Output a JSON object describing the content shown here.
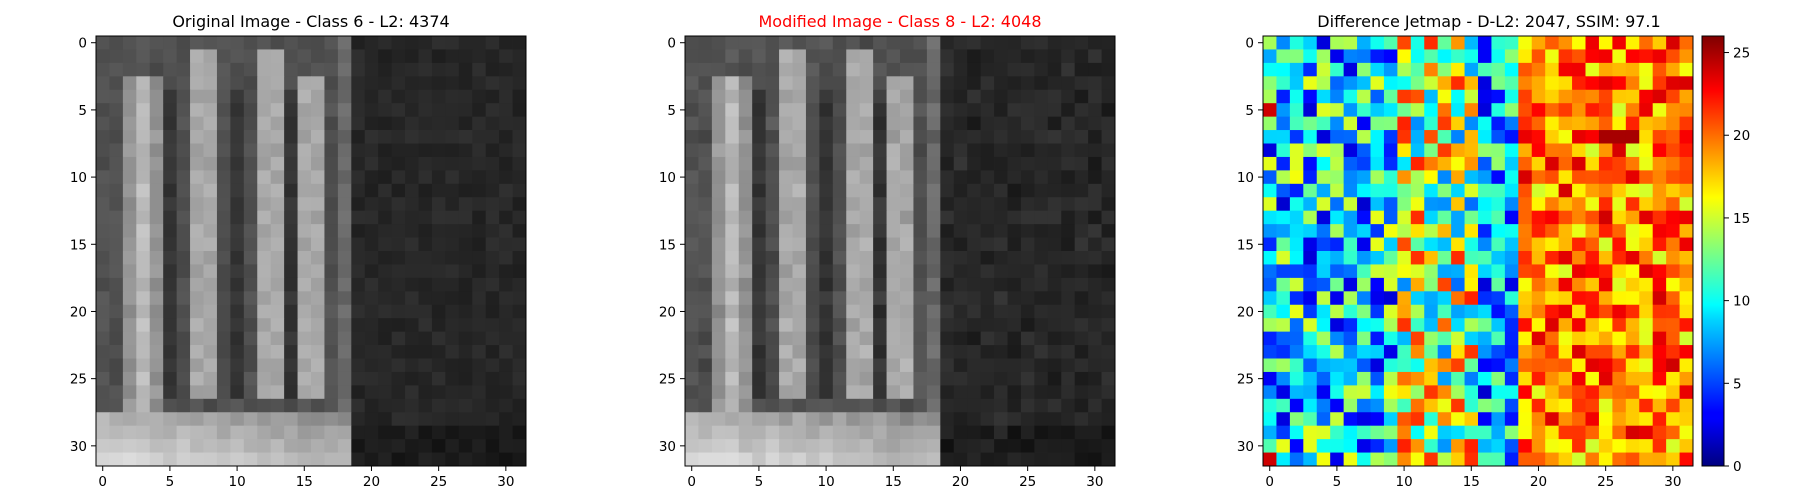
{
  "figure": {
    "panels": [
      {
        "title": "Original Image - Class 6 - L2: 4374",
        "title_color": "#000000"
      },
      {
        "title": "Modified Image - Class 8 - L2: 4048",
        "title_color": "#ff0000"
      },
      {
        "title": "Difference Jetmap - D-L2: 2047, SSIM: 97.1",
        "title_color": "#000000"
      }
    ],
    "x_ticks": [
      "0",
      "5",
      "10",
      "15",
      "20",
      "25",
      "30"
    ],
    "y_ticks": [
      "0",
      "5",
      "10",
      "15",
      "20",
      "25",
      "30"
    ],
    "colorbar_ticks": [
      "0",
      "5",
      "10",
      "15",
      "20",
      "25"
    ]
  },
  "chart_data": [
    {
      "type": "heatmap",
      "title": "Original Image - Class 6 - L2: 4374",
      "colormap": "gray",
      "grid_size": [
        32,
        32
      ],
      "xlim": [
        0,
        31
      ],
      "ylim": [
        31,
        0
      ],
      "x_ticks": [
        0,
        5,
        10,
        15,
        20,
        25,
        30
      ],
      "y_ticks": [
        0,
        5,
        10,
        15,
        20,
        25,
        30
      ],
      "description_values": "grayscale pixel intensities; left 18 columns show two bright vertical digit strokes, right 14 columns are dark background"
    },
    {
      "type": "heatmap",
      "title": "Modified Image - Class 8 - L2: 4048",
      "colormap": "gray",
      "grid_size": [
        32,
        32
      ],
      "xlim": [
        0,
        31
      ],
      "ylim": [
        31,
        0
      ],
      "x_ticks": [
        0,
        5,
        10,
        15,
        20,
        25,
        30
      ],
      "y_ticks": [
        0,
        5,
        10,
        15,
        20,
        25,
        30
      ]
    },
    {
      "type": "heatmap",
      "title": "Difference Jetmap - D-L2: 2047, SSIM: 97.1",
      "colormap": "jet",
      "grid_size": [
        32,
        32
      ],
      "xlim": [
        0,
        31
      ],
      "ylim": [
        31,
        0
      ],
      "x_ticks": [
        0,
        5,
        10,
        15,
        20,
        25,
        30
      ],
      "y_ticks": [
        0,
        5,
        10,
        15,
        20,
        25,
        30
      ],
      "colorbar": {
        "range": [
          0,
          26
        ],
        "ticks": [
          0,
          5,
          10,
          15,
          20,
          25
        ]
      }
    }
  ]
}
